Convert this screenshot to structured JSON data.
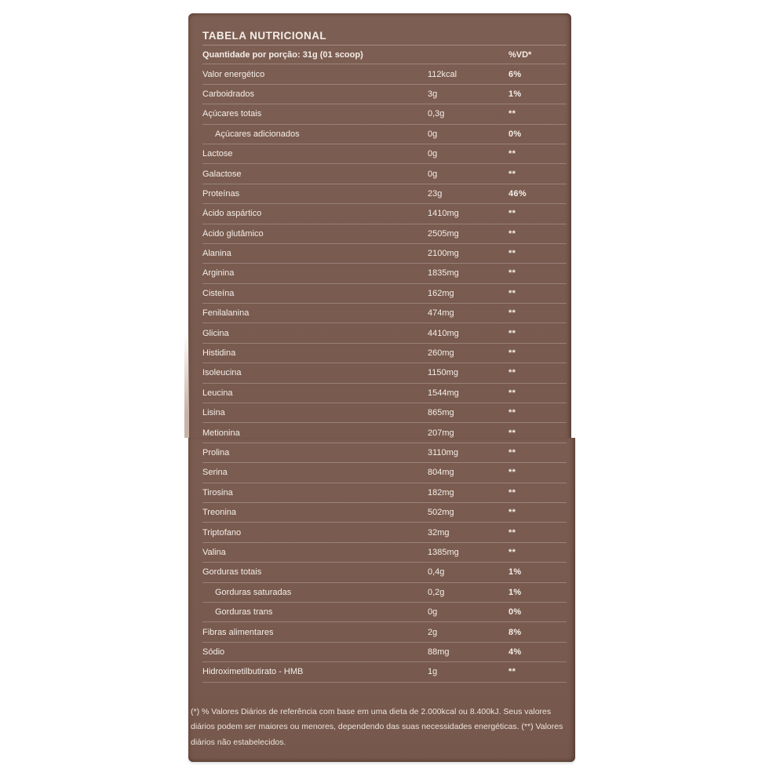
{
  "colors": {
    "panel_brown": "#795b4f",
    "edge_light": "#c9b3a6",
    "text_white": "#f4eee9",
    "separator": "rgba(255,255,255,0.24)"
  },
  "panel": {
    "title": "TABELA NUTRICIONAL",
    "header": {
      "label": "Quantidade por porção: 31g (01 scoop)",
      "vd": "%VD*"
    },
    "rows": [
      {
        "label": "Valor energético",
        "value": "112kcal",
        "vd": "6%",
        "indent": false
      },
      {
        "label": "Carboidrados",
        "value": "3g",
        "vd": "1%",
        "indent": false
      },
      {
        "label": "Açúcares totais",
        "value": "0,3g",
        "vd": "**",
        "indent": false
      },
      {
        "label": "Açúcares adicionados",
        "value": "0g",
        "vd": "0%",
        "indent": true
      },
      {
        "label": "Lactose",
        "value": "0g",
        "vd": "**",
        "indent": false
      },
      {
        "label": "Galactose",
        "value": "0g",
        "vd": "**",
        "indent": false
      },
      {
        "label": "Proteínas",
        "value": "23g",
        "vd": "46%",
        "indent": false
      },
      {
        "label": "Ácido aspártico",
        "value": "1410mg",
        "vd": "**",
        "indent": false
      },
      {
        "label": "Ácido glutâmico",
        "value": "2505mg",
        "vd": "**",
        "indent": false
      },
      {
        "label": "Alanina",
        "value": "2100mg",
        "vd": "**",
        "indent": false
      },
      {
        "label": "Arginina",
        "value": "1835mg",
        "vd": "**",
        "indent": false
      },
      {
        "label": "Cisteína",
        "value": "162mg",
        "vd": "**",
        "indent": false
      },
      {
        "label": "Fenilalanina",
        "value": "474mg",
        "vd": "**",
        "indent": false
      },
      {
        "label": "Glicina",
        "value": "4410mg",
        "vd": "**",
        "indent": false
      },
      {
        "label": "Histidina",
        "value": "260mg",
        "vd": "**",
        "indent": false
      },
      {
        "label": "Isoleucina",
        "value": "1150mg",
        "vd": "**",
        "indent": false
      },
      {
        "label": "Leucina",
        "value": "1544mg",
        "vd": "**",
        "indent": false
      },
      {
        "label": "Lisina",
        "value": "865mg",
        "vd": "**",
        "indent": false
      },
      {
        "label": "Metionina",
        "value": "207mg",
        "vd": "**",
        "indent": false
      },
      {
        "label": "Prolina",
        "value": "3110mg",
        "vd": "**",
        "indent": false
      },
      {
        "label": "Serina",
        "value": "804mg",
        "vd": "**",
        "indent": false
      },
      {
        "label": "Tirosina",
        "value": "182mg",
        "vd": "**",
        "indent": false
      },
      {
        "label": "Treonina",
        "value": "502mg",
        "vd": "**",
        "indent": false
      },
      {
        "label": "Triptofano",
        "value": "32mg",
        "vd": "**",
        "indent": false
      },
      {
        "label": "Valina",
        "value": "1385mg",
        "vd": "**",
        "indent": false
      },
      {
        "label": "Gorduras totais",
        "value": "0,4g",
        "vd": "1%",
        "indent": false
      },
      {
        "label": "Gorduras saturadas",
        "value": "0,2g",
        "vd": "1%",
        "indent": true
      },
      {
        "label": "Gorduras trans",
        "value": "0g",
        "vd": "0%",
        "indent": true
      },
      {
        "label": "Fibras alimentares",
        "value": "2g",
        "vd": "8%",
        "indent": false
      },
      {
        "label": "Sódio",
        "value": "88mg",
        "vd": "4%",
        "indent": false
      },
      {
        "label": "Hidroximetilbutirato - HMB",
        "value": "1g",
        "vd": "**",
        "indent": false
      }
    ],
    "footnote": "(*) % Valores Diários de referência com base em uma dieta de 2.000kcal ou 8.400kJ. Seus valores diários podem ser maiores ou menores, dependendo das suas necessidades energéticas. (**) Valores diários não estabelecidos."
  }
}
